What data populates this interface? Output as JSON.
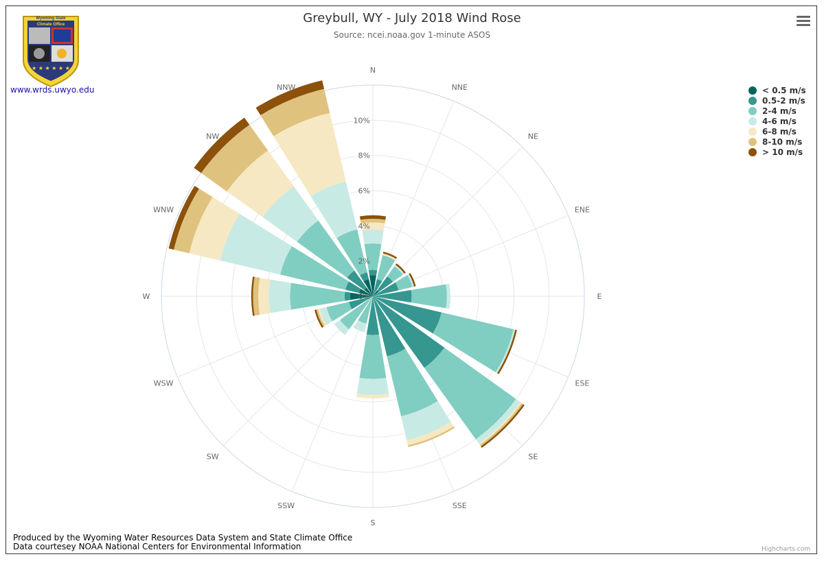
{
  "header": {
    "title": "Greybull, WY - July 2018 Wind Rose",
    "subtitle": "Source: ncei.noaa.gov 1-minute ASOS"
  },
  "logo": {
    "text_line1": "Wyoming State",
    "text_line2": "Climate Office",
    "link": "www.wrds.uwyo.edu"
  },
  "footer": {
    "line1": "Produced by the Wyoming Water Resources Data System and State Climate Office",
    "line2": "Data courtesey NOAA National Centers for Environmental Information",
    "credit": "Highcharts.com"
  },
  "chart_data": {
    "type": "windrose",
    "directions": [
      "N",
      "NNE",
      "NE",
      "ENE",
      "E",
      "ESE",
      "SE",
      "SSE",
      "S",
      "SSW",
      "SW",
      "WSW",
      "W",
      "WNW",
      "NW",
      "NNW"
    ],
    "radial_ticks": [
      "0%",
      "2%",
      "4%",
      "6%",
      "8%",
      "10%"
    ],
    "radial_max": 12,
    "grid": true,
    "legend_position": "top-right",
    "series": [
      {
        "name": "< 0.5 m/s",
        "color": "#01665e",
        "values": [
          1.2,
          0,
          0.4,
          0,
          0,
          0,
          0,
          0,
          0,
          0,
          0,
          0,
          1.3,
          0.8,
          0.6,
          1.0
        ]
      },
      {
        "name": "0.5-2 m/s",
        "color": "#35978f",
        "values": [
          0.3,
          1.0,
          1.0,
          1.5,
          2.2,
          4.0,
          5.0,
          3.5,
          2.2,
          0,
          0,
          1.4,
          0.3,
          0.8,
          1.2,
          0.4
        ]
      },
      {
        "name": "2-4 m/s",
        "color": "#80cdc1",
        "values": [
          1.5,
          1.4,
          0.7,
          0.8,
          2.0,
          4.2,
          5.0,
          3.5,
          2.5,
          1.6,
          2.3,
          1.3,
          3.1,
          3.8,
          3.5,
          2.5
        ]
      },
      {
        "name": "4-6 m/s",
        "color": "#c7eae5",
        "values": [
          0.8,
          0,
          0.1,
          0.1,
          0.2,
          0.1,
          0.3,
          1.4,
          0.9,
          0.5,
          0.4,
          0.4,
          1.2,
          3.5,
          2.4,
          2.8
        ]
      },
      {
        "name": "6-8 m/s",
        "color": "#f6e8c3",
        "values": [
          0.4,
          0.1,
          0,
          0,
          0,
          0,
          0.1,
          0.3,
          0.2,
          0,
          0,
          0.1,
          0.6,
          1.8,
          2.5,
          4.0
        ]
      },
      {
        "name": "8-10 m/s",
        "color": "#dfc27d",
        "values": [
          0.2,
          0,
          0,
          0,
          0,
          0,
          0.1,
          0.1,
          0,
          0,
          0,
          0.1,
          0.3,
          0.9,
          1.8,
          1.4
        ]
      },
      {
        "name": "> 10 m/s",
        "color": "#8c510a",
        "values": [
          0.2,
          0.1,
          0.1,
          0.1,
          0,
          0.1,
          0.1,
          0,
          0,
          0,
          0,
          0.1,
          0.1,
          0.3,
          0.5,
          0.5
        ]
      }
    ]
  }
}
